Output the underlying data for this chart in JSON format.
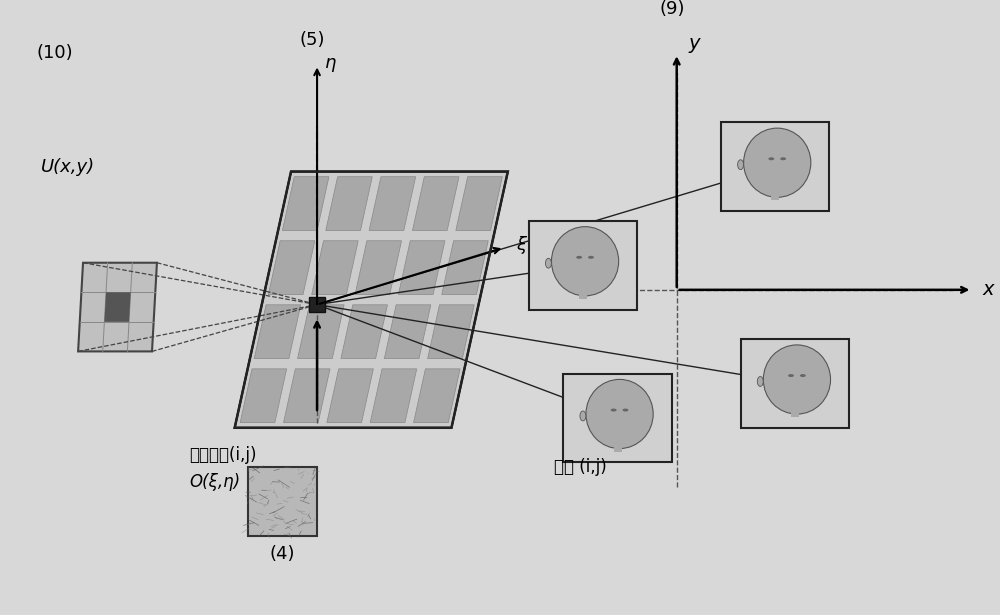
{
  "bg_color": "#d8d8d8",
  "title": "",
  "label_10": "(10)",
  "label_5": "(5)",
  "label_4": "(4)",
  "label_9": "(9)",
  "label_U": "U(x,y)",
  "label_holoelement": "全息单元(i,j)",
  "label_O": "O(ξ,η)",
  "label_pixel": "像素 (i,j)",
  "label_eta": "η",
  "label_xi": "ξ",
  "label_x": "x",
  "label_y": "y",
  "font_size_label": 13,
  "font_size_axis": 13
}
